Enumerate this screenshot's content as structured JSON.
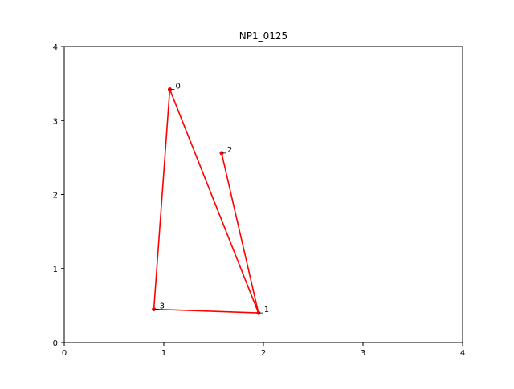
{
  "chart_data": {
    "type": "line",
    "title": "NP1_0125",
    "xlabel": "",
    "ylabel": "",
    "xlim": [
      0,
      4
    ],
    "ylim": [
      0,
      4
    ],
    "xticks": [
      0,
      1,
      2,
      3,
      4
    ],
    "yticks": [
      0,
      1,
      2,
      3,
      4
    ],
    "tick_labels": {
      "x": [
        "0",
        "1",
        "2",
        "3",
        "4"
      ],
      "y": [
        "0",
        "1",
        "2",
        "3",
        "4"
      ]
    },
    "grid": false,
    "line_color": "#ff0000",
    "points": [
      {
        "label": "0",
        "x": 1.06,
        "y": 3.42
      },
      {
        "label": "1",
        "x": 1.95,
        "y": 0.4
      },
      {
        "label": "2",
        "x": 1.58,
        "y": 2.56
      },
      {
        "label": "3",
        "x": 0.9,
        "y": 0.45
      }
    ],
    "path_order": [
      "2",
      "1",
      "3",
      "0",
      "1"
    ]
  }
}
